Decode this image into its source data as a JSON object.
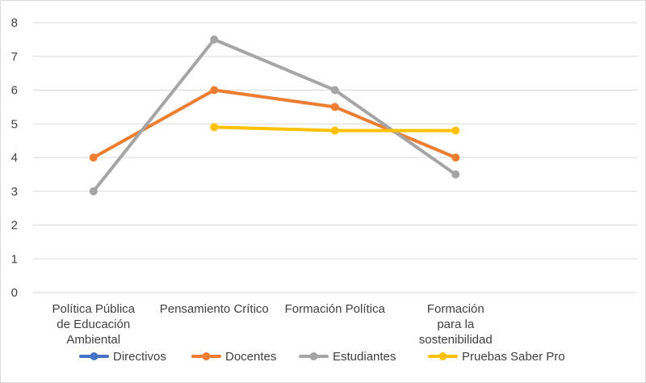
{
  "chart_data": {
    "type": "line",
    "title": "",
    "xlabel": "",
    "ylabel": "",
    "ylim": [
      0,
      8
    ],
    "yticks": [
      "0",
      "1",
      "2",
      "3",
      "4",
      "5",
      "6",
      "7",
      "8"
    ],
    "grid": true,
    "legend_position": "bottom",
    "categories": [
      [
        "Política Pública",
        "de Educación",
        "Ambiental"
      ],
      [
        "Pensamiento Crítico"
      ],
      [
        "Formación Política"
      ],
      [
        "Formación",
        "para la",
        "sostenibilidad"
      ]
    ],
    "series": [
      {
        "name": "Directivos",
        "color": "#4472c4",
        "values": [
          null,
          null,
          null,
          null
        ]
      },
      {
        "name": "Docentes",
        "color": "#ed7d31",
        "values": [
          4,
          6,
          5.5,
          4
        ]
      },
      {
        "name": "Estudiantes",
        "color": "#a5a5a5",
        "values": [
          3,
          7.5,
          6,
          3.5
        ]
      },
      {
        "name": "Pruebas Saber Pro",
        "color": "#ffc000",
        "values": [
          null,
          4.9,
          4.8,
          4.8
        ]
      }
    ]
  }
}
